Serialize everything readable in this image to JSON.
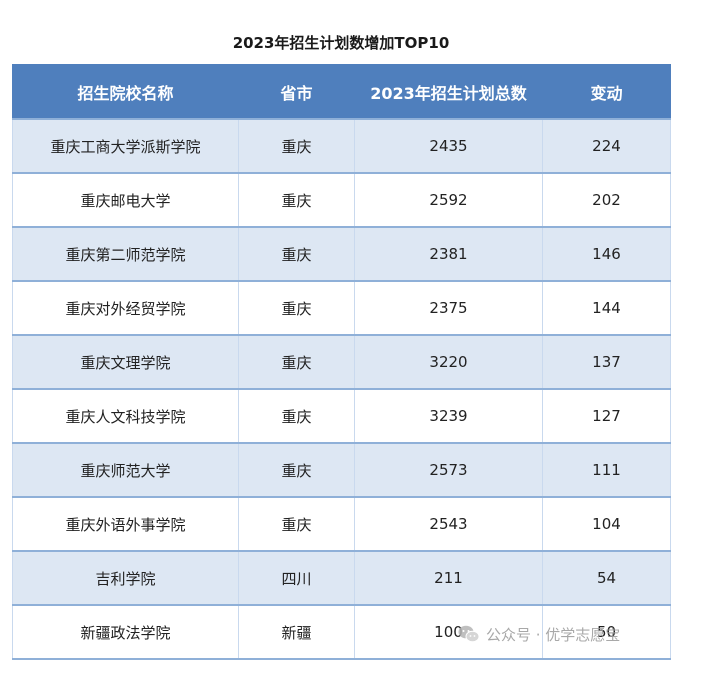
{
  "title": "2023年招生计划数增加TOP10",
  "table": {
    "headers": [
      "招生院校名称",
      "省市",
      "2023年招生计划总数",
      "变动"
    ],
    "rows": [
      [
        "重庆工商大学派斯学院",
        "重庆",
        "2435",
        "224"
      ],
      [
        "重庆邮电大学",
        "重庆",
        "2592",
        "202"
      ],
      [
        "重庆第二师范学院",
        "重庆",
        "2381",
        "146"
      ],
      [
        "重庆对外经贸学院",
        "重庆",
        "2375",
        "144"
      ],
      [
        "重庆文理学院",
        "重庆",
        "3220",
        "137"
      ],
      [
        "重庆人文科技学院",
        "重庆",
        "3239",
        "127"
      ],
      [
        "重庆师范大学",
        "重庆",
        "2573",
        "111"
      ],
      [
        "重庆外语外事学院",
        "重庆",
        "2543",
        "104"
      ],
      [
        "吉利学院",
        "四川",
        "211",
        "54"
      ],
      [
        "新疆政法学院",
        "新疆",
        "100",
        "50"
      ]
    ]
  },
  "watermark": {
    "text": "公众号 · 优学志愿宝",
    "icon": "wechat-icon"
  }
}
